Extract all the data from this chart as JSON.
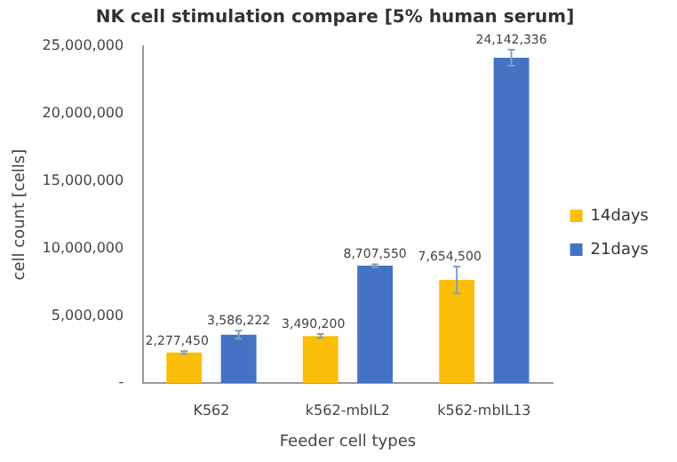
{
  "chart_data": {
    "type": "bar",
    "title": "NK cell stimulation compare [5% human serum]",
    "xlabel": "Feeder cell types",
    "ylabel": "cell count [cells]",
    "categories": [
      "K562",
      "k562-mbIL2",
      "k562-mbIL13"
    ],
    "series": [
      {
        "name": "14days",
        "color": "#fbbf0a",
        "values": [
          2277450,
          3490200,
          7654500
        ],
        "errors": [
          100000,
          150000,
          1000000
        ],
        "value_labels": [
          "2,277,450",
          "3,490,200",
          "7,654,500"
        ]
      },
      {
        "name": "21days",
        "color": "#4472c4",
        "values": [
          3586222,
          8707550,
          24142336
        ],
        "errors": [
          300000,
          100000,
          600000
        ],
        "value_labels": [
          "3,586,222",
          "8,707,550",
          "24,142,336"
        ]
      }
    ],
    "ylim": [
      0,
      25000000
    ],
    "yticks": [
      {
        "value": 0,
        "label": "-"
      },
      {
        "value": 5000000,
        "label": "5,000,000"
      },
      {
        "value": 10000000,
        "label": "10,000,000"
      },
      {
        "value": 15000000,
        "label": "15,000,000"
      },
      {
        "value": 20000000,
        "label": "20,000,000"
      },
      {
        "value": 25000000,
        "label": "25,000,000"
      }
    ],
    "grid": false,
    "legend": "right"
  }
}
